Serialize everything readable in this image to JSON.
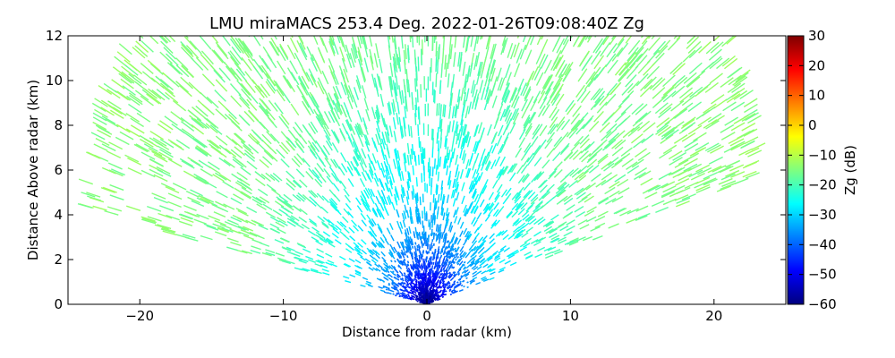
{
  "chart_data": {
    "type": "scatter",
    "subtype": "radar RHI scan (reflectivity field rendered as colored dashes)",
    "title": "LMU miraMACS 253.4 Deg. 2022-01-26T09:08:40Z  Zg",
    "xlabel": "Distance from radar (km)",
    "ylabel": "Distance Above radar  (km)",
    "xlim": [
      -25,
      25
    ],
    "ylim": [
      0,
      12
    ],
    "x_ticks": [
      -20,
      -10,
      0,
      10,
      20
    ],
    "y_ticks": [
      0,
      2,
      4,
      6,
      8,
      10,
      12
    ],
    "grid": false,
    "field": "Zg",
    "scan": {
      "elevation_min_deg": 14,
      "elevation_max_deg": 170,
      "max_range_km": 24
    },
    "reflectivity_profile": {
      "description": "Zg decreases from about -60 dB at the radar site to about -14 dB at long range",
      "range_km": [
        0.3,
        0.8,
        1.5,
        2.5,
        3.5,
        5,
        7,
        9,
        12,
        24
      ],
      "zg_db": [
        -58,
        -52,
        -45,
        -38,
        -33,
        -28,
        -24,
        -20,
        -16,
        -14
      ]
    },
    "colorbar": {
      "label": "Zg (dB)",
      "min": -60,
      "max": 30,
      "ticks": [
        30,
        20,
        10,
        0,
        -10,
        -20,
        -30,
        -40,
        -50,
        -60
      ],
      "colormap": "jet",
      "stops": [
        "#00007f",
        "#0000ff",
        "#007fff",
        "#00ffff",
        "#7fff7f",
        "#ffff00",
        "#ff7f00",
        "#ff0000",
        "#7f0000"
      ]
    }
  }
}
